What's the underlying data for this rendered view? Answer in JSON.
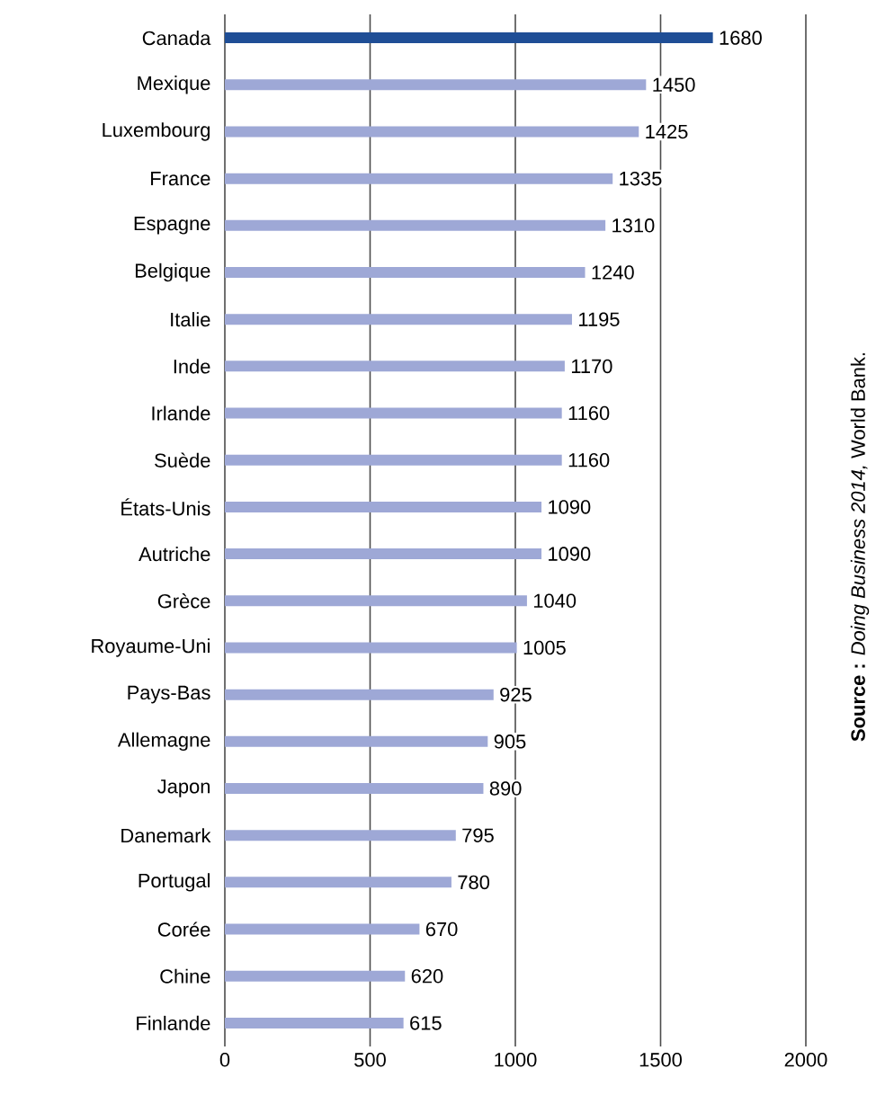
{
  "chart_data": {
    "type": "bar",
    "orientation": "horizontal",
    "categories": [
      "Canada",
      "Mexique",
      "Luxembourg",
      "France",
      "Espagne",
      "Belgique",
      "Italie",
      "Inde",
      "Irlande",
      "Suède",
      "États-Unis",
      "Autriche",
      "Grèce",
      "Royaume-Uni",
      "Pays-Bas",
      "Allemagne",
      "Japon",
      "Danemark",
      "Portugal",
      "Corée",
      "Chine",
      "Finlande"
    ],
    "values": [
      1680,
      1450,
      1425,
      1335,
      1310,
      1240,
      1195,
      1170,
      1160,
      1160,
      1090,
      1090,
      1040,
      1005,
      925,
      905,
      890,
      795,
      780,
      670,
      620,
      615
    ],
    "colors": [
      "#1f4e96",
      "#9ea8d6",
      "#9ea8d6",
      "#9ea8d6",
      "#9ea8d6",
      "#9ea8d6",
      "#9ea8d6",
      "#9ea8d6",
      "#9ea8d6",
      "#9ea8d6",
      "#9ea8d6",
      "#9ea8d6",
      "#9ea8d6",
      "#9ea8d6",
      "#9ea8d6",
      "#9ea8d6",
      "#9ea8d6",
      "#9ea8d6",
      "#9ea8d6",
      "#9ea8d6",
      "#9ea8d6",
      "#9ea8d6"
    ],
    "xlim": [
      0,
      2000
    ],
    "xticks": [
      0,
      500,
      1000,
      1500,
      2000
    ],
    "grid": "x",
    "data_labels": true,
    "annotations": [
      "**Source :** *Doing Business 2014,* World Bank."
    ]
  }
}
